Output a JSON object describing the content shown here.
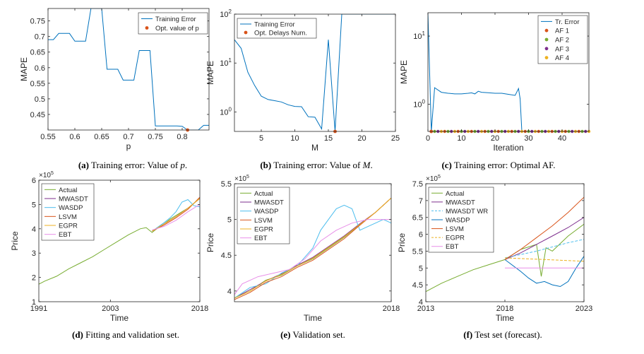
{
  "figure": {
    "captions": [
      {
        "label": "(a)",
        "text": "Training error: Value of ",
        "var": "p",
        "end": "."
      },
      {
        "label": "(b)",
        "text": "Training error: Value of ",
        "var": "M",
        "end": "."
      },
      {
        "label": "(c)",
        "text": "Training error: Optimal AF.",
        "var": "",
        "end": ""
      },
      {
        "label": "(d)",
        "text": "Fitting and validation set.",
        "var": "",
        "end": ""
      },
      {
        "label": "(e)",
        "text": "Validation set.",
        "var": "",
        "end": ""
      },
      {
        "label": "(f)",
        "text": "Test set (forecast).",
        "var": "",
        "end": ""
      }
    ]
  },
  "colors": {
    "blue": "#0072BD",
    "orange": "#D95319",
    "yellow": "#EDB120",
    "purple": "#7E2F8E",
    "green": "#77AC30",
    "cyan": "#4DBEEE",
    "red": "#A2142F",
    "magenta": "#E88FE8",
    "axis": "#262626"
  },
  "chart_data": [
    {
      "id": "a",
      "type": "line",
      "xlabel": "p",
      "ylabel": "MAPE",
      "xlim": [
        0.55,
        0.85
      ],
      "ylim": [
        0.4,
        0.79
      ],
      "xticks": [
        0.55,
        0.6,
        0.65,
        0.7,
        0.75,
        0.8
      ],
      "xticklabels": [
        "0.55",
        "0.6",
        "0.65",
        "0.7",
        "0.75",
        "0.8"
      ],
      "yticks": [
        0.45,
        0.5,
        0.55,
        0.6,
        0.65,
        0.7,
        0.75
      ],
      "yticklabels": [
        "0.45",
        "0.5",
        "0.55",
        "0.6",
        "0.65",
        "0.7",
        "0.75"
      ],
      "legend": [
        "Training Error",
        "Opt. value of p"
      ],
      "series": [
        {
          "name": "Training Error",
          "color": "blue",
          "x": [
            0.55,
            0.56,
            0.57,
            0.58,
            0.59,
            0.6,
            0.61,
            0.62,
            0.63,
            0.64,
            0.65,
            0.66,
            0.67,
            0.68,
            0.69,
            0.7,
            0.71,
            0.72,
            0.73,
            0.74,
            0.75,
            0.76,
            0.77,
            0.78,
            0.79,
            0.8,
            0.81,
            0.82,
            0.83,
            0.84,
            0.85
          ],
          "y": [
            0.69,
            0.69,
            0.71,
            0.71,
            0.71,
            0.685,
            0.685,
            0.685,
            0.79,
            0.79,
            0.79,
            0.595,
            0.595,
            0.595,
            0.56,
            0.56,
            0.56,
            0.655,
            0.655,
            0.655,
            0.413,
            0.413,
            0.413,
            0.413,
            0.413,
            0.412,
            0.4,
            0.4,
            0.4,
            0.415,
            0.415
          ]
        }
      ],
      "markers": [
        {
          "name": "Opt. value of p",
          "color": "orange",
          "x": 0.81,
          "y": 0.4
        }
      ]
    },
    {
      "id": "b",
      "type": "line",
      "yscale": "log",
      "xlabel": "M",
      "ylabel": "MAPE",
      "xlim": [
        1,
        25
      ],
      "ylim": [
        0.4,
        100
      ],
      "xticks": [
        5,
        10,
        15,
        20,
        25
      ],
      "xticklabels": [
        "5",
        "10",
        "15",
        "20",
        "25"
      ],
      "yticks": [
        1,
        10,
        100
      ],
      "yticklabels": [
        "10^0",
        "10^1",
        "10^2"
      ],
      "legend": [
        "Training Error",
        "Opt. Delays Num."
      ],
      "series": [
        {
          "name": "Training Error",
          "color": "blue",
          "x": [
            1,
            2,
            3,
            4,
            5,
            6,
            7,
            8,
            9,
            10,
            11,
            12,
            13,
            14,
            15,
            16,
            17,
            18,
            19,
            20,
            21,
            22,
            23,
            24,
            25
          ],
          "y": [
            30,
            20,
            6.5,
            3.5,
            2.1,
            1.8,
            1.7,
            1.6,
            1.4,
            1.3,
            1.28,
            0.8,
            0.78,
            0.45,
            30,
            0.4,
            100,
            100,
            100,
            100,
            100,
            100,
            100,
            100,
            100
          ]
        }
      ],
      "markers": [
        {
          "name": "Opt. Delays Num.",
          "color": "orange",
          "x": 16,
          "y": 0.4
        }
      ]
    },
    {
      "id": "c",
      "type": "line",
      "yscale": "log",
      "xlabel": "Iteration",
      "ylabel": "MAPE",
      "xlim": [
        0,
        48
      ],
      "ylim": [
        0.4,
        22
      ],
      "xticks": [
        0,
        10,
        20,
        30,
        40
      ],
      "xticklabels": [
        "0",
        "10",
        "20",
        "30",
        "40"
      ],
      "yticks": [
        1,
        10
      ],
      "yticklabels": [
        "10^0",
        "10^1"
      ],
      "legend": [
        "Tr. Error",
        "AF 1",
        "AF 2",
        "AF 3",
        "AF 4"
      ],
      "series": [
        {
          "name": "Tr. Error",
          "color": "blue",
          "x": [
            0,
            1,
            2,
            4,
            6,
            8,
            10,
            12,
            13,
            14,
            15,
            16,
            18,
            20,
            22,
            24,
            26,
            27,
            27.5,
            28,
            29,
            30,
            35,
            40,
            45,
            48
          ],
          "y": [
            22,
            0.4,
            1.75,
            1.5,
            1.45,
            1.42,
            1.42,
            1.45,
            1.47,
            1.42,
            1.55,
            1.5,
            1.48,
            1.45,
            1.45,
            1.4,
            1.35,
            1.7,
            1.2,
            0.4,
            0.4,
            0.4,
            0.4,
            0.4,
            0.4,
            0.4
          ]
        }
      ],
      "marker_pattern": {
        "x_start": 1,
        "x_end": 48,
        "y": 0.4,
        "cycle": [
          "orange",
          "green",
          "purple",
          "yellow"
        ]
      },
      "markers": [
        {
          "name": "AF 1",
          "color": "orange",
          "x": 1,
          "y": 0.4
        }
      ]
    },
    {
      "id": "d",
      "type": "line",
      "xlabel": "Time",
      "ylabel": "Price",
      "yexponent": "×10^5",
      "xlim": [
        1991,
        2018
      ],
      "ylim": [
        1,
        6
      ],
      "xticks": [
        1991,
        2003,
        2018
      ],
      "xticklabels": [
        "1991",
        "2003",
        "2018"
      ],
      "yticks": [
        1,
        2,
        3,
        4,
        5,
        6
      ],
      "yticklabels": [
        "1",
        "2",
        "3",
        "4",
        "5",
        "6"
      ],
      "legend": [
        "Actual",
        "MWASDT",
        "WASDP",
        "LSVM",
        "EGPR",
        "EBT"
      ],
      "series": [
        {
          "name": "Actual",
          "color": "green",
          "x": [
            1991,
            1992,
            1994,
            1996,
            1998,
            2000,
            2002,
            2004,
            2006,
            2008,
            2009,
            2010,
            2011,
            2012,
            2013,
            2014,
            2015,
            2016,
            2017,
            2018
          ],
          "y": [
            1.72,
            1.85,
            2.05,
            2.35,
            2.6,
            2.85,
            3.15,
            3.45,
            3.75,
            4.0,
            4.05,
            3.85,
            4.05,
            4.2,
            4.4,
            4.55,
            4.7,
            4.85,
            5.05,
            5.25
          ]
        },
        {
          "name": "MWASDT",
          "color": "purple",
          "x": [
            2010,
            2012,
            2014,
            2016,
            2018
          ],
          "y": [
            3.9,
            4.2,
            4.5,
            4.85,
            5.25
          ]
        },
        {
          "name": "WASDP",
          "color": "cyan",
          "x": [
            2010,
            2012,
            2013,
            2014,
            2015,
            2016,
            2017,
            2018
          ],
          "y": [
            3.9,
            4.25,
            4.45,
            4.7,
            5.1,
            5.2,
            4.95,
            4.9
          ]
        },
        {
          "name": "LSVM",
          "color": "orange",
          "x": [
            2010,
            2012,
            2014,
            2016,
            2018
          ],
          "y": [
            3.9,
            4.15,
            4.45,
            4.8,
            5.3
          ]
        },
        {
          "name": "EGPR",
          "color": "yellow",
          "x": [
            2010,
            2012,
            2014,
            2016,
            2018
          ],
          "y": [
            3.9,
            4.2,
            4.5,
            4.85,
            5.25
          ]
        },
        {
          "name": "EBT",
          "color": "magenta",
          "x": [
            2010,
            2012,
            2014,
            2016,
            2018
          ],
          "y": [
            3.95,
            4.1,
            4.35,
            4.7,
            5.0
          ]
        }
      ]
    },
    {
      "id": "e",
      "type": "line",
      "xlabel": "Time",
      "ylabel": "Price",
      "yexponent": "×10^5",
      "xlim": [
        0,
        100
      ],
      "ylim": [
        3.85,
        5.5
      ],
      "xticks": [
        100
      ],
      "xticklabels": [
        "2018"
      ],
      "yticks": [
        4,
        4.5,
        5,
        5.5
      ],
      "yticklabels": [
        "4",
        "4.5",
        "5",
        "5.5"
      ],
      "legend": [
        "Actual",
        "MWASDT",
        "WASDP",
        "LSVM",
        "EGPR",
        "EBT"
      ],
      "series": [
        {
          "name": "Actual",
          "color": "green",
          "x": [
            0,
            10,
            20,
            30,
            40,
            50,
            60,
            70,
            80,
            90,
            100
          ],
          "y": [
            3.9,
            4.0,
            4.15,
            4.22,
            4.35,
            4.45,
            4.6,
            4.75,
            4.93,
            5.1,
            5.3
          ]
        },
        {
          "name": "MWASDT",
          "color": "purple",
          "x": [
            0,
            10,
            20,
            30,
            40,
            50,
            60,
            70,
            80,
            90,
            100
          ],
          "y": [
            3.9,
            4.02,
            4.14,
            4.24,
            4.36,
            4.47,
            4.62,
            4.77,
            4.94,
            5.1,
            5.3
          ]
        },
        {
          "name": "WASDP",
          "color": "cyan",
          "x": [
            0,
            10,
            20,
            30,
            40,
            50,
            55,
            60,
            65,
            70,
            75,
            80,
            85,
            90,
            95,
            100
          ],
          "y": [
            3.9,
            4.05,
            4.1,
            4.25,
            4.35,
            4.6,
            4.85,
            5.0,
            5.15,
            5.2,
            5.15,
            4.85,
            4.9,
            4.95,
            5.0,
            4.95
          ]
        },
        {
          "name": "LSVM",
          "color": "orange",
          "x": [
            0,
            10,
            20,
            30,
            40,
            50,
            60,
            70,
            80,
            90,
            100
          ],
          "y": [
            3.88,
            3.98,
            4.12,
            4.2,
            4.33,
            4.43,
            4.58,
            4.73,
            4.92,
            5.1,
            5.3
          ]
        },
        {
          "name": "EGPR",
          "color": "yellow",
          "x": [
            0,
            10,
            20,
            30,
            40,
            50,
            60,
            70,
            80,
            90,
            100
          ],
          "y": [
            3.9,
            4.0,
            4.14,
            4.23,
            4.35,
            4.46,
            4.61,
            4.76,
            4.93,
            5.1,
            5.3
          ]
        },
        {
          "name": "EBT",
          "color": "magenta",
          "x": [
            0,
            5,
            15,
            25,
            35,
            45,
            55,
            65,
            75,
            85,
            95,
            100
          ],
          "y": [
            3.95,
            4.1,
            4.2,
            4.25,
            4.3,
            4.45,
            4.7,
            4.85,
            4.95,
            5.0,
            5.0,
            5.0
          ]
        }
      ]
    },
    {
      "id": "f",
      "type": "line",
      "xlabel": "Time",
      "ylabel": "Price",
      "yexponent": "×10^5",
      "xlim": [
        2013,
        2023
      ],
      "ylim": [
        4,
        7.5
      ],
      "xticks": [
        2013,
        2018,
        2023
      ],
      "xticklabels": [
        "2013",
        "2018",
        "2023"
      ],
      "yticks": [
        4,
        4.5,
        5,
        5.5,
        6,
        6.5,
        7,
        7.5
      ],
      "yticklabels": [
        "4",
        "4.5",
        "5",
        "5.5",
        "6",
        "6.5",
        "7",
        "7.5"
      ],
      "legend": [
        "Actual",
        "MWASDT",
        "MWASDT WR",
        "WASDP",
        "LSVM",
        "EGPR",
        "EBT"
      ],
      "series": [
        {
          "name": "Actual",
          "color": "green",
          "x": [
            2013,
            2014,
            2015,
            2016,
            2017,
            2018,
            2019,
            2020,
            2020.3,
            2020.6,
            2021,
            2022,
            2023
          ],
          "y": [
            4.3,
            4.55,
            4.75,
            4.95,
            5.1,
            5.25,
            5.55,
            5.7,
            4.75,
            5.6,
            5.5,
            5.95,
            6.3
          ]
        },
        {
          "name": "MWASDT",
          "color": "purple",
          "x": [
            2018,
            2019,
            2020,
            2021,
            2022,
            2023
          ],
          "y": [
            5.25,
            5.45,
            5.7,
            5.95,
            6.2,
            6.5
          ]
        },
        {
          "name": "MWASDT WR",
          "color": "cyan",
          "dashed": true,
          "x": [
            2018,
            2020,
            2022,
            2023
          ],
          "y": [
            5.3,
            5.5,
            5.75,
            5.85
          ]
        },
        {
          "name": "WASDP",
          "color": "blue",
          "x": [
            2018,
            2019,
            2019.5,
            2020,
            2020.5,
            2021,
            2021.5,
            2022,
            2022.5,
            2023
          ],
          "y": [
            5.25,
            4.9,
            4.7,
            4.55,
            4.6,
            4.5,
            4.45,
            4.6,
            5.0,
            5.35
          ]
        },
        {
          "name": "LSVM",
          "color": "orange",
          "x": [
            2018,
            2019,
            2020,
            2021,
            2022,
            2023
          ],
          "y": [
            5.25,
            5.55,
            5.9,
            6.25,
            6.65,
            7.1
          ]
        },
        {
          "name": "EGPR",
          "color": "yellow",
          "dashed": true,
          "x": [
            2018,
            2023
          ],
          "y": [
            5.3,
            5.2
          ]
        },
        {
          "name": "EBT",
          "color": "magenta",
          "x": [
            2018,
            2023
          ],
          "y": [
            5.0,
            5.0
          ]
        }
      ]
    }
  ]
}
